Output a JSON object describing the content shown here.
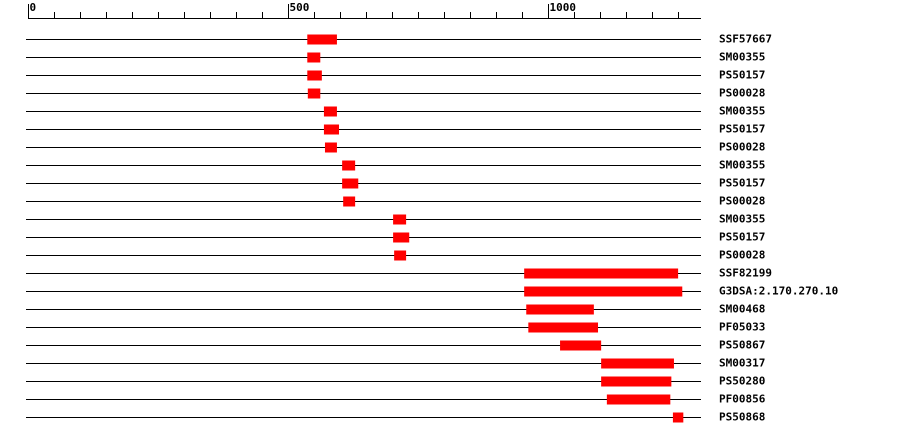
{
  "chart_data": {
    "type": "range",
    "categories": [
      "SSF57667",
      "SM00355",
      "PS50157",
      "PS00028",
      "SM00355",
      "PS50157",
      "PS00028",
      "SM00355",
      "PS50157",
      "PS00028",
      "SM00355",
      "PS50157",
      "PS00028",
      "SSF82199",
      "G3DSA:2.170.270.10",
      "SM00468",
      "PF05033",
      "PS50867",
      "SM00317",
      "PS50280",
      "PF00856",
      "PS50868"
    ],
    "start": [
      537,
      537,
      537,
      538,
      569,
      569,
      571,
      604,
      604,
      606,
      702,
      702,
      704,
      954,
      954,
      958,
      962,
      1023,
      1102,
      1102,
      1113,
      1240
    ],
    "end": [
      594,
      562,
      565,
      562,
      594,
      598,
      594,
      629,
      635,
      629,
      727,
      733,
      727,
      1250,
      1258,
      1088,
      1096,
      1102,
      1242,
      1237,
      1235,
      1260
    ],
    "color": "#ff0000",
    "xlim": [
      0,
      1294
    ],
    "xticks": [
      0,
      500,
      1000
    ],
    "minor_xticks": [
      50,
      100,
      150,
      200,
      250,
      300,
      350,
      400,
      450,
      550,
      600,
      650,
      700,
      750,
      800,
      850,
      900,
      950,
      1050,
      1100,
      1150,
      1200,
      1250
    ]
  }
}
